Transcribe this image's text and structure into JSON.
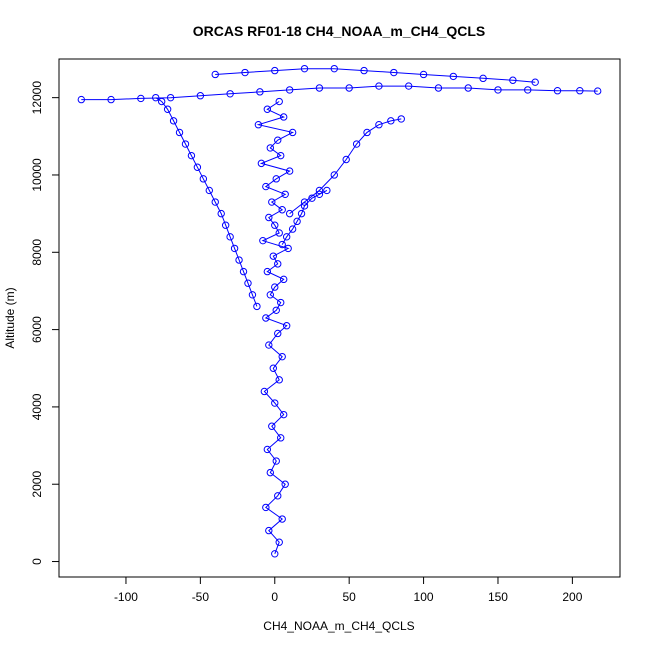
{
  "chart_data": {
    "type": "scatter",
    "title": "ORCAS RF01-18 CH4_NOAA_m_CH4_QCLS",
    "xlabel": "CH4_NOAA_m_CH4_QCLS",
    "ylabel": "Altitude (m)",
    "xlim": [
      -145,
      232
    ],
    "ylim": [
      -400,
      13000
    ],
    "xticks": [
      -100,
      -50,
      0,
      50,
      100,
      150,
      200
    ],
    "yticks": [
      0,
      2000,
      4000,
      6000,
      8000,
      10000,
      12000
    ],
    "grid": false,
    "legend": "none",
    "point_style": "open-circle",
    "connect_points": true,
    "series_color": "#0000ff",
    "series": [
      {
        "x": [
          0,
          3,
          -4,
          5,
          -6,
          2,
          7,
          -3,
          1,
          -5,
          4,
          -2,
          6,
          0,
          -7,
          3,
          -1,
          5,
          -4,
          2,
          8,
          -6,
          1,
          4,
          -3,
          0,
          6,
          -5,
          2,
          -1,
          9,
          -8,
          3,
          0,
          -4,
          5,
          -2,
          7,
          -6,
          1,
          10,
          -9,
          4,
          -3,
          2,
          12,
          -11,
          6,
          -5,
          3
        ],
        "y": [
          200,
          500,
          800,
          1100,
          1400,
          1700,
          2000,
          2300,
          2600,
          2900,
          3200,
          3500,
          3800,
          4100,
          4400,
          4700,
          5000,
          5300,
          5600,
          5900,
          6100,
          6300,
          6500,
          6700,
          6900,
          7100,
          7300,
          7500,
          7700,
          7900,
          8100,
          8300,
          8500,
          8700,
          8900,
          9100,
          9300,
          9500,
          9700,
          9900,
          10100,
          10300,
          10500,
          10700,
          10900,
          11100,
          11300,
          11500,
          11700,
          11900
        ]
      },
      {
        "x": [
          -12,
          -15,
          -18,
          -21,
          -24,
          -27,
          -30,
          -33,
          -36,
          -40,
          -44,
          -48,
          -52,
          -56,
          -60,
          -64,
          -68,
          -72,
          -76,
          -80
        ],
        "y": [
          6600,
          6900,
          7200,
          7500,
          7800,
          8100,
          8400,
          8700,
          9000,
          9300,
          9600,
          9900,
          10200,
          10500,
          10800,
          11100,
          11400,
          11700,
          11900,
          12000
        ]
      },
      {
        "x": [
          -130,
          -110,
          -90,
          -70,
          -50,
          -30,
          -10,
          10,
          30,
          50,
          70,
          90,
          110,
          130,
          150,
          170,
          190,
          205,
          217
        ],
        "y": [
          11950,
          11950,
          11980,
          12000,
          12050,
          12100,
          12150,
          12200,
          12250,
          12250,
          12300,
          12300,
          12250,
          12250,
          12200,
          12200,
          12180,
          12180,
          12170
        ]
      },
      {
        "x": [
          -40,
          -20,
          0,
          20,
          40,
          60,
          80,
          100,
          120,
          140,
          160,
          175
        ],
        "y": [
          12600,
          12650,
          12700,
          12750,
          12750,
          12700,
          12650,
          12600,
          12550,
          12500,
          12450,
          12400
        ]
      },
      {
        "x": [
          10,
          20,
          30,
          40,
          48,
          55,
          62,
          70,
          78,
          85
        ],
        "y": [
          9000,
          9300,
          9600,
          10000,
          10400,
          10800,
          11100,
          11300,
          11400,
          11450
        ]
      },
      {
        "x": [
          5,
          8,
          12,
          15,
          18,
          20,
          25,
          30,
          35
        ],
        "y": [
          8200,
          8400,
          8600,
          8800,
          9000,
          9200,
          9400,
          9500,
          9600
        ]
      }
    ]
  }
}
